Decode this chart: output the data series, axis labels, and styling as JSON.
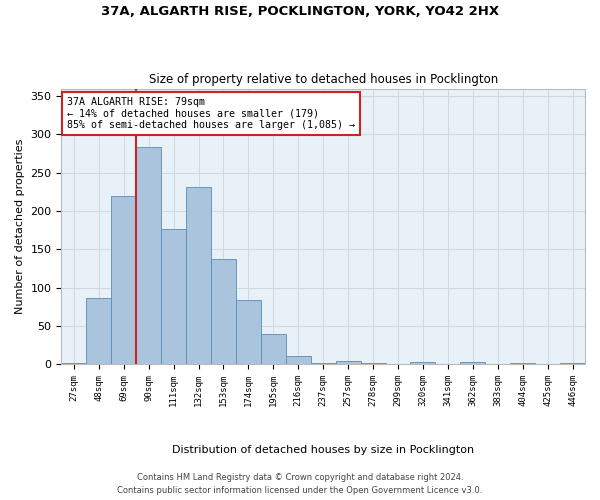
{
  "title_line1": "37A, ALGARTH RISE, POCKLINGTON, YORK, YO42 2HX",
  "title_line2": "Size of property relative to detached houses in Pocklington",
  "xlabel": "Distribution of detached houses by size in Pocklington",
  "ylabel": "Number of detached properties",
  "categories": [
    "27sqm",
    "48sqm",
    "69sqm",
    "90sqm",
    "111sqm",
    "132sqm",
    "153sqm",
    "174sqm",
    "195sqm",
    "216sqm",
    "237sqm",
    "257sqm",
    "278sqm",
    "299sqm",
    "320sqm",
    "341sqm",
    "362sqm",
    "383sqm",
    "404sqm",
    "425sqm",
    "446sqm"
  ],
  "values": [
    2,
    87,
    219,
    284,
    177,
    232,
    137,
    84,
    40,
    11,
    2,
    4,
    2,
    0,
    3,
    0,
    3,
    0,
    1,
    0,
    2
  ],
  "bar_color": "#aac4dd",
  "bar_edge_color": "#5a8db5",
  "grid_color": "#d0d8e0",
  "bg_color": "#e8f0f8",
  "vline_color": "#cc2222",
  "annotation_text": "37A ALGARTH RISE: 79sqm\n← 14% of detached houses are smaller (179)\n85% of semi-detached houses are larger (1,085) →",
  "annotation_box_color": "#ffffff",
  "annotation_box_edge": "#cc2222",
  "ylim": [
    0,
    360
  ],
  "yticks": [
    0,
    50,
    100,
    150,
    200,
    250,
    300,
    350
  ],
  "footer_line1": "Contains HM Land Registry data © Crown copyright and database right 2024.",
  "footer_line2": "Contains public sector information licensed under the Open Government Licence v3.0."
}
